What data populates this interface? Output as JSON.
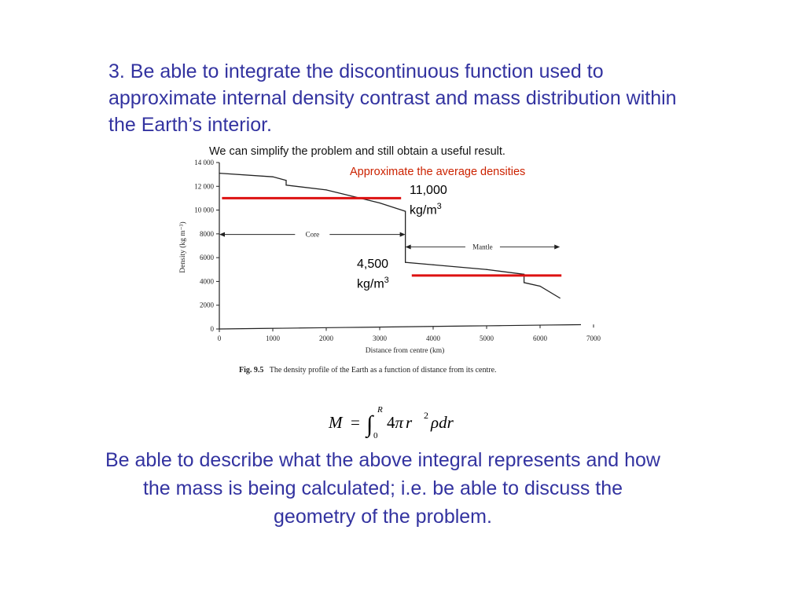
{
  "slide": {
    "heading": "3. Be able to integrate the discontinuous function used to approximate internal density contrast and mass distribution within the Earth’s interior.",
    "note_black": "We can simplify the problem and still obtain a useful result.",
    "note_red": "Approximate the average densities",
    "core_avg": {
      "value": "11,000",
      "unit": "kg/m",
      "exp": "3"
    },
    "mantle_avg": {
      "value": "4,500",
      "unit": "kg/m",
      "exp": "3"
    },
    "bottom_text": "Be able to describe what the above integral represents and how the mass is being calculated; i.e. be able to discuss the geometry of the problem.",
    "equation": {
      "lhs": "M",
      "eq": "=",
      "integral": "∫",
      "upper": "R",
      "lower": "0",
      "body_num": "4",
      "pi": "π",
      "r": "r",
      "pow": "2",
      "rho": "ρ",
      "dr": "dr"
    },
    "colors": {
      "text_blue": "#3333a0",
      "approx_red": "#dd1111",
      "note_red": "#cc2200"
    }
  },
  "chart_data": {
    "type": "line",
    "title": "",
    "caption_label": "Fig. 9.5",
    "caption_text": "The density profile of the Earth as a function of distance from its centre.",
    "xlabel": "Distance from centre (km)",
    "ylabel": "Density (kg m⁻³)",
    "xlim": [
      0,
      7000
    ],
    "ylim": [
      0,
      14000
    ],
    "x_ticks": [
      0,
      1000,
      2000,
      3000,
      4000,
      5000,
      6000,
      7000
    ],
    "x_tick_labels": [
      "0",
      "1000",
      "2000",
      "3000",
      "4000",
      "5000",
      "6000",
      "7000"
    ],
    "y_ticks": [
      0,
      2000,
      4000,
      6000,
      8000,
      10000,
      12000,
      14000
    ],
    "y_tick_labels": [
      "0",
      "2000",
      "4000",
      "6000",
      "8000",
      "10 000",
      "12 000",
      "14 000"
    ],
    "grid": false,
    "series": [
      {
        "x": [
          0,
          1000,
          1250,
          1250,
          2000,
          3000,
          3480,
          3480,
          4000,
          5000,
          5700,
          5700,
          6000,
          6371
        ],
        "y": [
          13100,
          12800,
          12500,
          12100,
          11700,
          10600,
          9900,
          5600,
          5400,
          5000,
          4600,
          3900,
          3600,
          2600
        ]
      }
    ],
    "annotations": [
      {
        "label": "Core",
        "x_from": 0,
        "x_to": 3480,
        "y": 7950
      },
      {
        "label": "Mantle",
        "x_from": 3480,
        "x_to": 6371,
        "y": 6900
      }
    ],
    "approximations": [
      {
        "x_from": 50,
        "x_to": 3400,
        "y": 11000,
        "color": "#dd1111"
      },
      {
        "x_from": 3600,
        "x_to": 6400,
        "y": 4500,
        "color": "#dd1111"
      }
    ]
  }
}
